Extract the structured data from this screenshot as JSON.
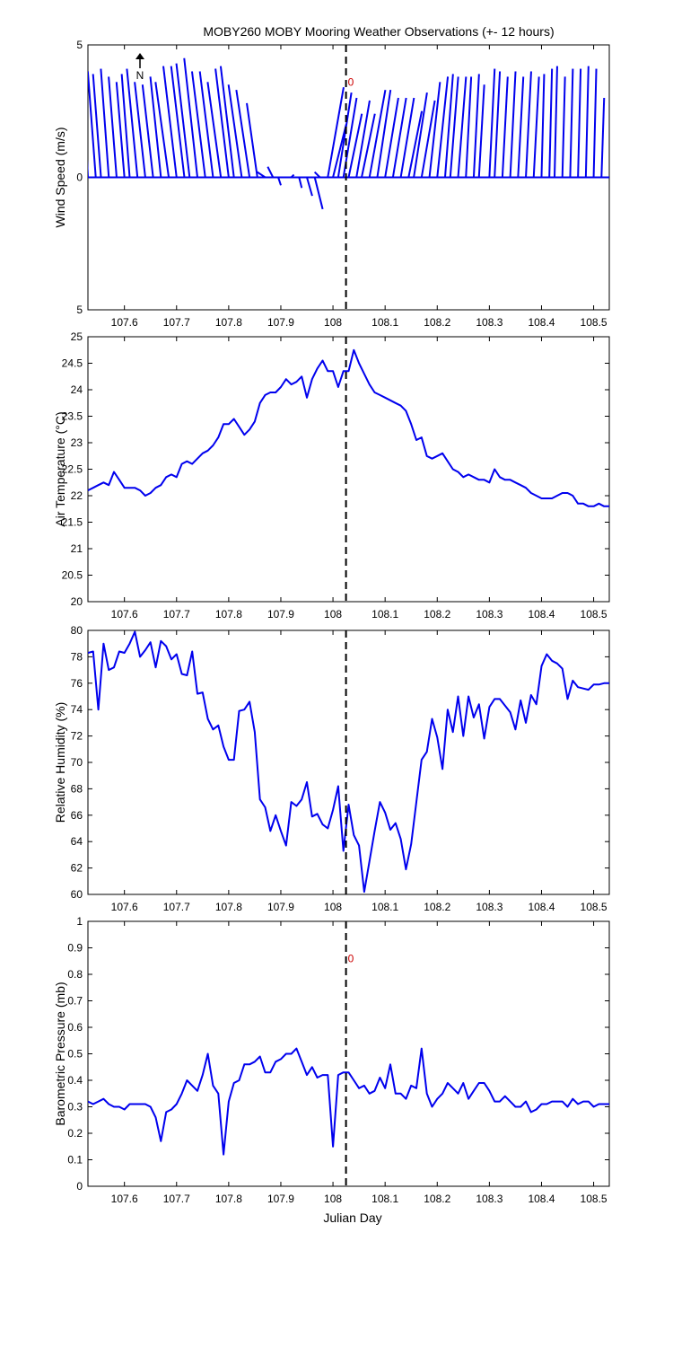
{
  "figure": {
    "title": "MOBY260 MOBY Mooring Weather Observations (+- 12 hours)",
    "xlabel": "Julian Day",
    "x_ticks": [
      107.6,
      107.7,
      107.8,
      107.9,
      108,
      108.1,
      108.2,
      108.3,
      108.4,
      108.5
    ],
    "xlim": [
      107.53,
      108.53
    ],
    "reference_day": 108.025,
    "line_color": "#0000ee",
    "reference_color": "#000000",
    "annotation_color": "#cc0000"
  },
  "chart_data": [
    {
      "type": "line",
      "subtype": "wind-vector-stick",
      "ylabel": "Wind Speed (m/s)",
      "ylim": [
        -5,
        5
      ],
      "y_tick_labels": [
        "5",
        "0",
        "5"
      ],
      "north_indicator": "N",
      "annotation": "0",
      "grid": false,
      "x": [
        107.53,
        107.545,
        107.555,
        107.57,
        107.585,
        107.6,
        107.61,
        107.625,
        107.64,
        107.655,
        107.67,
        107.685,
        107.7,
        107.715,
        107.725,
        107.74,
        107.755,
        107.77,
        107.785,
        107.8,
        107.81,
        107.825,
        107.84,
        107.855,
        107.87,
        107.885,
        107.895,
        107.92,
        107.935,
        107.95,
        107.965,
        107.975,
        107.99,
        108.0,
        108.01,
        108.02,
        108.03,
        108.045,
        108.055,
        108.07,
        108.085,
        108.1,
        108.115,
        108.13,
        108.145,
        108.155,
        108.17,
        108.185,
        108.2,
        108.215,
        108.225,
        108.24,
        108.255,
        108.27,
        108.28,
        108.3,
        108.31,
        108.325,
        108.34,
        108.355,
        108.37,
        108.385,
        108.4,
        108.415,
        108.425,
        108.44,
        108.455,
        108.47,
        108.485,
        108.5,
        108.515
      ],
      "u": [
        -0.2,
        -0.3,
        -0.3,
        -0.3,
        -0.3,
        -0.3,
        -0.3,
        -0.4,
        -0.4,
        -0.4,
        -0.4,
        -0.5,
        -0.5,
        -0.5,
        -0.5,
        -0.5,
        -0.5,
        -0.5,
        -0.5,
        -0.5,
        -0.5,
        -0.5,
        -0.5,
        -0.4,
        -0.3,
        -0.2,
        0.1,
        0.1,
        0.1,
        0.2,
        0.3,
        -0.2,
        0.6,
        0.5,
        0.5,
        0.5,
        0.5,
        0.5,
        0.5,
        0.6,
        0.5,
        0.5,
        0.5,
        0.5,
        0.5,
        0.5,
        0.5,
        0.4,
        0.4,
        0.3,
        0.3,
        0.3,
        0.2,
        0.2,
        0.2,
        0.2,
        0.2,
        0.2,
        0.2,
        0.2,
        0.2,
        0.2,
        0.1,
        0.1,
        0.1,
        0.1,
        0.1,
        0.1,
        0.1,
        0.1,
        0.1
      ],
      "v": [
        4.0,
        4.0,
        3.9,
        4.1,
        3.8,
        3.6,
        3.9,
        4.1,
        3.6,
        3.5,
        3.8,
        3.6,
        4.2,
        4.2,
        4.3,
        4.5,
        4.0,
        4.0,
        3.6,
        4.1,
        4.2,
        3.5,
        3.3,
        2.8,
        0.2,
        0.4,
        -0.3,
        0.1,
        -0.4,
        -0.7,
        -1.2,
        0.2,
        3.4,
        2.0,
        3.2,
        3.0,
        2.4,
        2.9,
        2.4,
        3.3,
        3.3,
        3.0,
        3.0,
        3.0,
        2.5,
        3.2,
        2.9,
        3.6,
        3.8,
        3.9,
        3.8,
        3.8,
        3.8,
        3.9,
        3.5,
        4.1,
        4.0,
        3.8,
        4.0,
        3.8,
        4.0,
        3.8,
        3.9,
        4.1,
        4.2,
        3.8,
        4.1,
        4.1,
        4.2,
        4.1,
        3.0
      ]
    },
    {
      "type": "line",
      "ylabel": "Air Temperature (°C)",
      "ylim": [
        20,
        25
      ],
      "y_tick_labels": [
        "20",
        "20.5",
        "21",
        "21.5",
        "22",
        "22.5",
        "23",
        "23.5",
        "24",
        "24.5",
        "25"
      ],
      "grid": false,
      "x": [
        107.53,
        107.54,
        107.55,
        107.56,
        107.57,
        107.58,
        107.59,
        107.6,
        107.61,
        107.62,
        107.63,
        107.64,
        107.65,
        107.66,
        107.67,
        107.68,
        107.69,
        107.7,
        107.71,
        107.72,
        107.73,
        107.74,
        107.75,
        107.76,
        107.77,
        107.78,
        107.79,
        107.8,
        107.81,
        107.82,
        107.83,
        107.84,
        107.85,
        107.86,
        107.87,
        107.88,
        107.89,
        107.9,
        107.91,
        107.92,
        107.93,
        107.94,
        107.95,
        107.96,
        107.97,
        107.98,
        107.99,
        108.0,
        108.01,
        108.02,
        108.03,
        108.04,
        108.05,
        108.06,
        108.07,
        108.08,
        108.09,
        108.1,
        108.11,
        108.12,
        108.13,
        108.14,
        108.15,
        108.16,
        108.17,
        108.18,
        108.19,
        108.2,
        108.21,
        108.22,
        108.23,
        108.24,
        108.25,
        108.26,
        108.27,
        108.28,
        108.29,
        108.3,
        108.31,
        108.32,
        108.33,
        108.34,
        108.35,
        108.36,
        108.37,
        108.38,
        108.39,
        108.4,
        108.41,
        108.42,
        108.43,
        108.44,
        108.45,
        108.46,
        108.47,
        108.48,
        108.49,
        108.5,
        108.51,
        108.52,
        108.53
      ],
      "y": [
        22.1,
        22.15,
        22.2,
        22.25,
        22.2,
        22.45,
        22.3,
        22.15,
        22.15,
        22.15,
        22.1,
        22.0,
        22.05,
        22.15,
        22.2,
        22.35,
        22.4,
        22.35,
        22.6,
        22.65,
        22.6,
        22.7,
        22.8,
        22.85,
        22.95,
        23.1,
        23.35,
        23.35,
        23.45,
        23.3,
        23.15,
        23.25,
        23.4,
        23.75,
        23.9,
        23.95,
        23.95,
        24.05,
        24.2,
        24.1,
        24.15,
        24.25,
        23.85,
        24.2,
        24.4,
        24.55,
        24.35,
        24.35,
        24.05,
        24.35,
        24.35,
        24.75,
        24.5,
        24.3,
        24.1,
        23.95,
        23.9,
        23.85,
        23.8,
        23.75,
        23.7,
        23.6,
        23.35,
        23.05,
        23.1,
        22.75,
        22.7,
        22.75,
        22.8,
        22.65,
        22.5,
        22.45,
        22.35,
        22.4,
        22.35,
        22.3,
        22.3,
        22.25,
        22.5,
        22.35,
        22.3,
        22.3,
        22.25,
        22.2,
        22.15,
        22.05,
        22.0,
        21.95,
        21.95,
        21.95,
        22.0,
        22.05,
        22.05,
        22.0,
        21.85,
        21.85,
        21.8,
        21.8,
        21.85,
        21.8,
        21.8
      ]
    },
    {
      "type": "line",
      "ylabel": "Relative Humidity (%)",
      "ylim": [
        60,
        80
      ],
      "y_tick_labels": [
        "60",
        "62",
        "64",
        "66",
        "68",
        "70",
        "72",
        "74",
        "76",
        "78",
        "80"
      ],
      "grid": false,
      "x": [
        107.53,
        107.54,
        107.55,
        107.56,
        107.57,
        107.58,
        107.59,
        107.6,
        107.61,
        107.62,
        107.63,
        107.64,
        107.65,
        107.66,
        107.67,
        107.68,
        107.69,
        107.7,
        107.71,
        107.72,
        107.73,
        107.74,
        107.75,
        107.76,
        107.77,
        107.78,
        107.79,
        107.8,
        107.81,
        107.82,
        107.83,
        107.84,
        107.85,
        107.86,
        107.87,
        107.88,
        107.89,
        107.9,
        107.91,
        107.92,
        107.93,
        107.94,
        107.95,
        107.96,
        107.97,
        107.98,
        107.99,
        108.0,
        108.01,
        108.02,
        108.03,
        108.04,
        108.05,
        108.06,
        108.07,
        108.08,
        108.09,
        108.1,
        108.11,
        108.12,
        108.13,
        108.14,
        108.15,
        108.16,
        108.17,
        108.18,
        108.19,
        108.2,
        108.21,
        108.22,
        108.23,
        108.24,
        108.25,
        108.26,
        108.27,
        108.28,
        108.29,
        108.3,
        108.31,
        108.32,
        108.33,
        108.34,
        108.35,
        108.36,
        108.37,
        108.38,
        108.39,
        108.4,
        108.41,
        108.42,
        108.43,
        108.44,
        108.45,
        108.46,
        108.47,
        108.48,
        108.49,
        108.5,
        108.51,
        108.52,
        108.53
      ],
      "y": [
        78.3,
        78.4,
        74.0,
        79.0,
        77.0,
        77.2,
        78.4,
        78.3,
        79.0,
        79.9,
        78.0,
        78.5,
        79.1,
        77.2,
        79.2,
        78.8,
        77.8,
        78.2,
        76.7,
        76.6,
        78.4,
        75.2,
        75.3,
        73.3,
        72.5,
        72.8,
        71.2,
        70.2,
        70.2,
        73.9,
        74.0,
        74.6,
        72.3,
        67.2,
        66.6,
        64.8,
        66.0,
        64.8,
        63.7,
        67.0,
        66.7,
        67.2,
        68.5,
        65.9,
        66.1,
        65.3,
        65.0,
        66.4,
        68.2,
        63.3,
        66.8,
        64.5,
        63.7,
        60.2,
        62.5,
        64.8,
        67.0,
        66.2,
        64.9,
        65.4,
        64.2,
        61.9,
        63.8,
        67.0,
        70.2,
        70.8,
        73.3,
        71.9,
        69.5,
        74.0,
        72.3,
        75.0,
        72.0,
        75.0,
        73.4,
        74.4,
        71.8,
        74.2,
        74.8,
        74.8,
        74.3,
        73.8,
        72.5,
        74.7,
        73.0,
        75.1,
        74.4,
        77.3,
        78.2,
        77.7,
        77.5,
        77.1,
        74.8,
        76.2,
        75.7,
        75.6,
        75.5,
        75.9,
        75.9,
        76.0,
        76.0
      ]
    },
    {
      "type": "line",
      "ylabel": "Barometric Pressure (mb)",
      "ylim": [
        0,
        1
      ],
      "y_tick_labels": [
        "0",
        "0.1",
        "0.2",
        "0.3",
        "0.4",
        "0.5",
        "0.6",
        "0.7",
        "0.8",
        "0.9",
        "1"
      ],
      "annotation": "0",
      "grid": false,
      "x": [
        107.53,
        107.54,
        107.55,
        107.56,
        107.57,
        107.58,
        107.59,
        107.6,
        107.61,
        107.62,
        107.63,
        107.64,
        107.65,
        107.66,
        107.67,
        107.68,
        107.69,
        107.7,
        107.71,
        107.72,
        107.73,
        107.74,
        107.75,
        107.76,
        107.77,
        107.78,
        107.79,
        107.8,
        107.81,
        107.82,
        107.83,
        107.84,
        107.85,
        107.86,
        107.87,
        107.88,
        107.89,
        107.9,
        107.91,
        107.92,
        107.93,
        107.94,
        107.95,
        107.96,
        107.97,
        107.98,
        107.99,
        108.0,
        108.01,
        108.02,
        108.03,
        108.04,
        108.05,
        108.06,
        108.07,
        108.08,
        108.09,
        108.1,
        108.11,
        108.12,
        108.13,
        108.14,
        108.15,
        108.16,
        108.17,
        108.18,
        108.19,
        108.2,
        108.21,
        108.22,
        108.23,
        108.24,
        108.25,
        108.26,
        108.27,
        108.28,
        108.29,
        108.3,
        108.31,
        108.32,
        108.33,
        108.34,
        108.35,
        108.36,
        108.37,
        108.38,
        108.39,
        108.4,
        108.41,
        108.42,
        108.43,
        108.44,
        108.45,
        108.46,
        108.47,
        108.48,
        108.49,
        108.5,
        108.51,
        108.52,
        108.53
      ],
      "y": [
        0.32,
        0.31,
        0.32,
        0.33,
        0.31,
        0.3,
        0.3,
        0.29,
        0.31,
        0.31,
        0.31,
        0.31,
        0.3,
        0.26,
        0.17,
        0.28,
        0.29,
        0.31,
        0.35,
        0.4,
        0.38,
        0.36,
        0.42,
        0.5,
        0.38,
        0.35,
        0.12,
        0.32,
        0.39,
        0.4,
        0.46,
        0.46,
        0.47,
        0.49,
        0.43,
        0.43,
        0.47,
        0.48,
        0.5,
        0.5,
        0.52,
        0.47,
        0.42,
        0.45,
        0.41,
        0.42,
        0.42,
        0.15,
        0.42,
        0.43,
        0.43,
        0.4,
        0.37,
        0.38,
        0.35,
        0.36,
        0.41,
        0.37,
        0.46,
        0.35,
        0.35,
        0.33,
        0.38,
        0.37,
        0.52,
        0.35,
        0.3,
        0.33,
        0.35,
        0.39,
        0.37,
        0.35,
        0.39,
        0.33,
        0.36,
        0.39,
        0.39,
        0.36,
        0.32,
        0.32,
        0.34,
        0.32,
        0.3,
        0.3,
        0.32,
        0.28,
        0.29,
        0.31,
        0.31,
        0.32,
        0.32,
        0.32,
        0.3,
        0.33,
        0.31,
        0.32,
        0.32,
        0.3,
        0.31,
        0.31,
        0.31
      ]
    }
  ]
}
